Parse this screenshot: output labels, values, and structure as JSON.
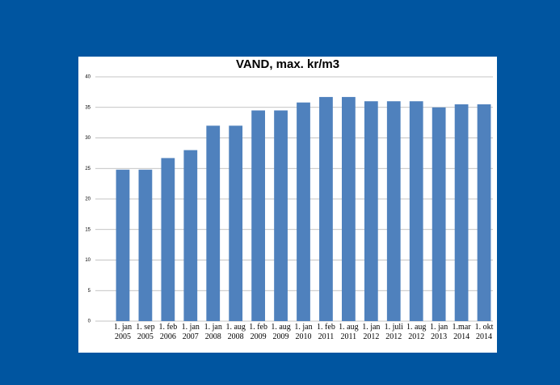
{
  "chart_data": {
    "type": "bar",
    "title": "VAND, max. kr/m3",
    "categories": [
      "1. jan 2005",
      "1. sep 2005",
      "1. feb 2006",
      "1. jan 2007",
      "1. jan 2008",
      "1. aug 2008",
      "1. feb 2009",
      "1. aug 2009",
      "1. jan 2010",
      "1. feb 2011",
      "1. aug 2011",
      "1. jan 2012",
      "1. juli 2012",
      "1. aug 2012",
      "1. jan 2013",
      "1.mar 2014",
      "1. okt 2014"
    ],
    "values": [
      24.8,
      24.8,
      26.7,
      28,
      32,
      32,
      34.5,
      34.5,
      35.8,
      36.7,
      36.7,
      36,
      36,
      36,
      35,
      35.5,
      35.5
    ],
    "color": "#4f81bd",
    "ylim": [
      0,
      40
    ],
    "yticks": [
      0,
      5,
      10,
      15,
      20,
      25,
      30,
      35,
      40
    ],
    "grid": true
  }
}
